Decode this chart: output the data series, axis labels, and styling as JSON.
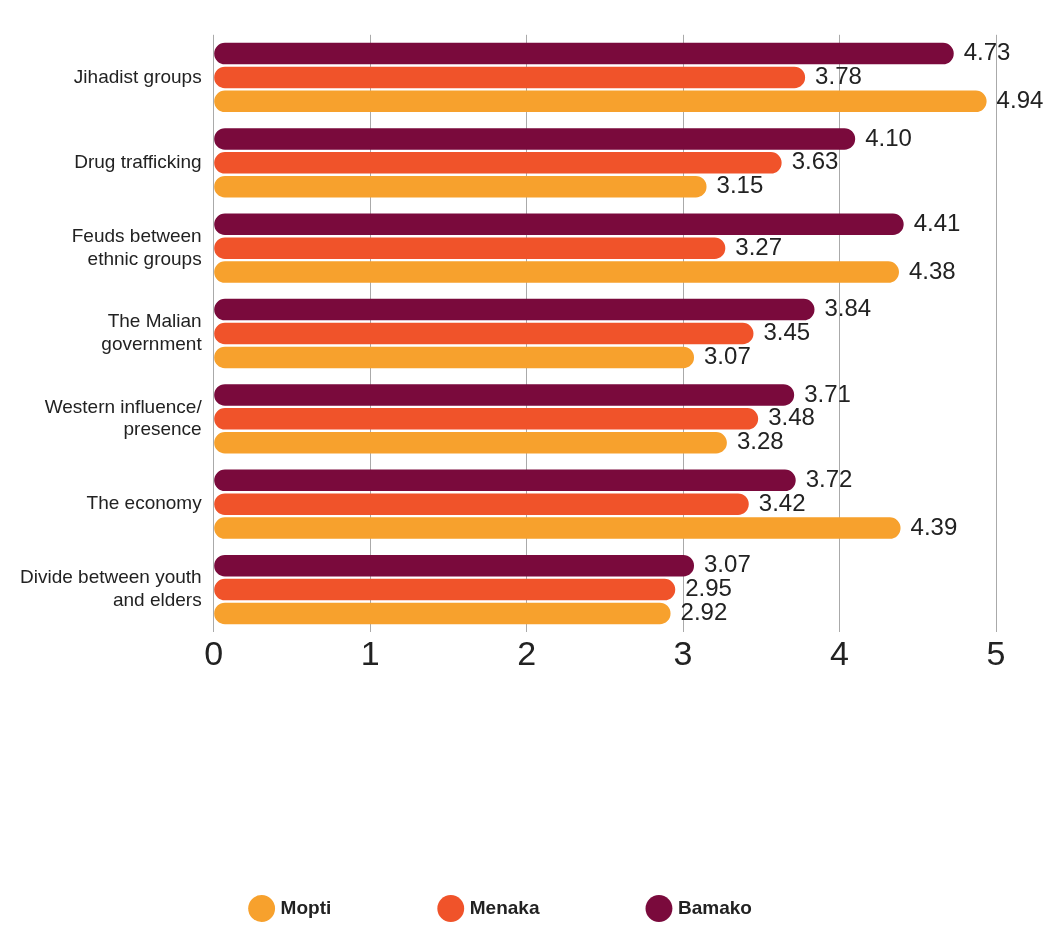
{
  "chart_data": {
    "type": "bar",
    "orientation": "horizontal",
    "categories": [
      "Jihadist groups",
      "Drug trafficking",
      "Feuds between ethnic groups",
      "The Malian government",
      "Western influence/ presence",
      "The economy",
      "Divide between youth and elders"
    ],
    "series": [
      {
        "name": "Bamako",
        "color": "#7a0a3c",
        "values": [
          4.73,
          4.1,
          4.41,
          3.84,
          3.71,
          3.72,
          3.07
        ],
        "value_labels": [
          "4.73",
          "4.10",
          "4.41",
          "3.84",
          "3.71",
          "3.72",
          "3.07"
        ]
      },
      {
        "name": "Menaka",
        "color": "#f0532a",
        "values": [
          3.78,
          3.63,
          3.27,
          3.45,
          3.48,
          3.42,
          2.95
        ],
        "value_labels": [
          "3.78",
          "3.63",
          "3.27",
          "3.45",
          "3.48",
          "3.42",
          "2.95"
        ]
      },
      {
        "name": "Mopti",
        "color": "#f7a12d",
        "values": [
          4.94,
          3.15,
          4.38,
          3.07,
          3.28,
          4.39,
          2.92
        ],
        "value_labels": [
          "4.94",
          "3.15",
          "4.38",
          "3.07",
          "3.28",
          "4.39",
          "2.92"
        ]
      }
    ],
    "xlim": [
      0,
      5
    ],
    "xticks": [
      0,
      1,
      2,
      3,
      4,
      5
    ],
    "grid": "x",
    "legend": "bottom"
  }
}
